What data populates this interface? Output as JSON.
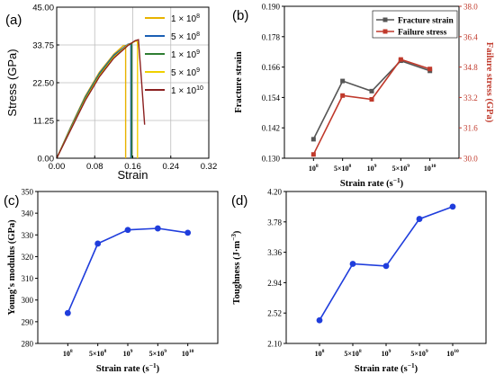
{
  "panels": {
    "a": {
      "label": "(a)",
      "chart_data": {
        "type": "line",
        "xlabel": "Strain",
        "ylabel": "Stress (GPa)",
        "xlim": [
          0,
          0.32
        ],
        "ylim": [
          0,
          45
        ],
        "xticks": [
          "0.00",
          "0.08",
          "0.16",
          "0.24",
          "0.32"
        ],
        "yticks": [
          "0.00",
          "11.25",
          "22.50",
          "33.75",
          "45.00"
        ],
        "grid": true,
        "legend_position": "top-right",
        "series": [
          {
            "name": "1 × 10",
            "exp": "8",
            "color": "#e8b300",
            "x": [
              0,
              0.03,
              0.06,
              0.09,
              0.12,
              0.14,
              0.145,
              0.145
            ],
            "y": [
              0,
              9.5,
              18.5,
              25.7,
              31.0,
              33.5,
              33.6,
              0
            ]
          },
          {
            "name": "5 × 10",
            "exp": "8",
            "color": "#1a5fb4",
            "x": [
              0,
              0.03,
              0.06,
              0.09,
              0.12,
              0.15,
              0.156,
              0.156
            ],
            "y": [
              0,
              9.3,
              18.2,
              25.3,
              30.7,
              34.0,
              34.2,
              0
            ]
          },
          {
            "name": "1 × 10",
            "exp": "9",
            "color": "#2f7d32",
            "x": [
              0,
              0.03,
              0.06,
              0.09,
              0.12,
              0.15,
              0.158,
              0.158
            ],
            "y": [
              0,
              9.0,
              17.8,
              24.9,
              30.3,
              33.7,
              34.2,
              0
            ]
          },
          {
            "name": "5 × 10",
            "exp": "9",
            "color": "#f0d000",
            "x": [
              0,
              0.03,
              0.06,
              0.09,
              0.12,
              0.15,
              0.168,
              0.17,
              0.17
            ],
            "y": [
              0,
              8.8,
              17.5,
              24.6,
              30.1,
              33.8,
              35.0,
              34.5,
              0
            ]
          },
          {
            "name": "1 × 10",
            "exp": "10",
            "color": "#8b2020",
            "x": [
              0,
              0.03,
              0.06,
              0.09,
              0.12,
              0.15,
              0.165,
              0.172,
              0.178,
              0.185
            ],
            "y": [
              0,
              8.6,
              17.2,
              24.3,
              29.8,
              33.6,
              35.0,
              35.3,
              24.0,
              10.0
            ]
          }
        ]
      }
    },
    "b": {
      "label": "(b)",
      "chart_data": {
        "type": "line",
        "categories": [
          "10",
          "5×10",
          "10",
          "5×10",
          "10"
        ],
        "category_exponents": [
          "8",
          "8",
          "9",
          "9",
          "10"
        ],
        "xlabel": "Strain rate (s",
        "xlabel_exp": "−1",
        "xlabel_end": ")",
        "ylabel": "Fracture strain",
        "ylabel_right": "Failure stress (GPa)",
        "ylim": [
          0.13,
          0.19
        ],
        "ylim_right": [
          30.0,
          38.0
        ],
        "yticks": [
          "0.130",
          "0.142",
          "0.154",
          "0.166",
          "0.178",
          "0.190"
        ],
        "yticks_right": [
          "30.0",
          "31.6",
          "33.2",
          "34.8",
          "36.4",
          "38.0"
        ],
        "legend_position": "top-right",
        "series": [
          {
            "name": "Fracture strain",
            "axis": "left",
            "color": "#555555",
            "marker": "square",
            "values": [
              0.1375,
              0.1605,
              0.1565,
              0.1685,
              0.1645
            ]
          },
          {
            "name": "Failure stress",
            "axis": "right",
            "color": "#c0392b",
            "marker": "square",
            "values": [
              30.2,
              33.3,
              33.1,
              35.2,
              34.7
            ]
          }
        ]
      }
    },
    "c": {
      "label": "(c)",
      "chart_data": {
        "type": "line",
        "categories": [
          "10",
          "5×10",
          "10",
          "5×10",
          "10"
        ],
        "category_exponents": [
          "8",
          "8",
          "9",
          "9",
          "10"
        ],
        "xlabel": "Strain rate (s",
        "xlabel_exp": "−1",
        "xlabel_end": ")",
        "ylabel": "Young's modulus (GPa)",
        "ylim": [
          280,
          350
        ],
        "yticks": [
          "280",
          "290",
          "300",
          "310",
          "320",
          "330",
          "340",
          "350"
        ],
        "series": [
          {
            "name": "",
            "color": "#1f3ddc",
            "marker": "circle",
            "values": [
              294.0,
              326.0,
              332.3,
              333.0,
              331.0
            ]
          }
        ]
      }
    },
    "d": {
      "label": "(d)",
      "chart_data": {
        "type": "line",
        "categories": [
          "10",
          "5×10",
          "10",
          "5×10",
          "10"
        ],
        "category_exponents": [
          "8",
          "8",
          "9",
          "9",
          "10"
        ],
        "xlabel": "Strain rate (s",
        "xlabel_exp": "−1",
        "xlabel_end": ")",
        "ylabel": "Toughness (J·m",
        "ylabel_exp": "−3",
        "ylabel_end": ")",
        "ylim": [
          2.1,
          4.2
        ],
        "yticks": [
          "2.10",
          "2.52",
          "2.94",
          "3.36",
          "3.78",
          "4.20"
        ],
        "series": [
          {
            "name": "",
            "color": "#1f3ddc",
            "marker": "circle",
            "values": [
              2.42,
              3.2,
              3.17,
              3.82,
              3.99
            ]
          }
        ]
      }
    }
  }
}
